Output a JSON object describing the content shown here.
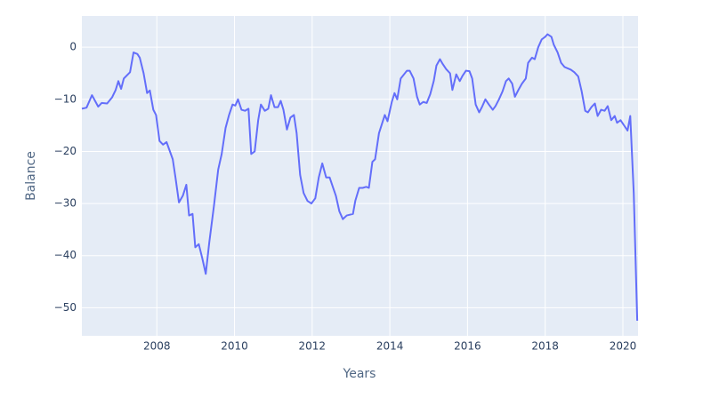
{
  "chart_data": {
    "type": "line",
    "x_label": "Years",
    "y_label": "Balance",
    "xlim": [
      2006.07,
      2020.39
    ],
    "ylim": [
      -55.4,
      6
    ],
    "xticks": [
      2008,
      2010,
      2012,
      2014,
      2016,
      2018,
      2020
    ],
    "yticks": [
      0,
      {
        "value": -10,
        "label": "−10"
      },
      {
        "value": -20,
        "label": "−20"
      },
      {
        "value": -30,
        "label": "−30"
      },
      {
        "value": -40,
        "label": "−40"
      },
      {
        "value": -50,
        "label": "−50"
      }
    ],
    "grid": true,
    "series": [
      {
        "color": "#636efa",
        "x": [
          2006.07,
          2006.19,
          2006.33,
          2006.49,
          2006.58,
          2006.72,
          2006.85,
          2006.94,
          2007.01,
          2007.08,
          2007.15,
          2007.31,
          2007.4,
          2007.5,
          2007.56,
          2007.66,
          2007.75,
          2007.82,
          2007.91,
          2007.98,
          2008.07,
          2008.16,
          2008.25,
          2008.41,
          2008.48,
          2008.57,
          2008.67,
          2008.76,
          2008.83,
          2008.92,
          2008.99,
          2009.08,
          2009.17,
          2009.26,
          2009.35,
          2009.47,
          2009.58,
          2009.67,
          2009.77,
          2009.86,
          2009.95,
          2010.02,
          2010.09,
          2010.18,
          2010.27,
          2010.36,
          2010.43,
          2010.52,
          2010.61,
          2010.68,
          2010.78,
          2010.87,
          2010.94,
          2011.03,
          2011.12,
          2011.19,
          2011.26,
          2011.35,
          2011.44,
          2011.53,
          2011.6,
          2011.69,
          2011.78,
          2011.88,
          2011.98,
          2012.08,
          2012.17,
          2012.26,
          2012.36,
          2012.45,
          2012.54,
          2012.61,
          2012.7,
          2012.79,
          2012.89,
          2013.05,
          2013.11,
          2013.21,
          2013.3,
          2013.39,
          2013.46,
          2013.55,
          2013.62,
          2013.72,
          2013.87,
          2013.94,
          2014.05,
          2014.12,
          2014.19,
          2014.28,
          2014.44,
          2014.51,
          2014.61,
          2014.7,
          2014.77,
          2014.86,
          2014.95,
          2015.04,
          2015.13,
          2015.2,
          2015.29,
          2015.36,
          2015.45,
          2015.55,
          2015.61,
          2015.71,
          2015.8,
          2015.87,
          2015.96,
          2016.05,
          2016.12,
          2016.21,
          2016.3,
          2016.37,
          2016.46,
          2016.55,
          2016.65,
          2016.72,
          2016.81,
          2016.9,
          2016.99,
          2017.06,
          2017.15,
          2017.22,
          2017.31,
          2017.4,
          2017.5,
          2017.56,
          2017.66,
          2017.73,
          2017.82,
          2017.91,
          2018.0,
          2018.06,
          2018.16,
          2018.22,
          2018.32,
          2018.41,
          2018.5,
          2018.66,
          2018.75,
          2018.85,
          2018.94,
          2019.03,
          2019.1,
          2019.19,
          2019.28,
          2019.35,
          2019.44,
          2019.53,
          2019.61,
          2019.7,
          2019.79,
          2019.85,
          2019.94,
          2020.03,
          2020.12,
          2020.19,
          2020.28,
          2020.37
        ],
        "values": [
          -11.8,
          -11.6,
          -9.2,
          -11.4,
          -10.7,
          -10.8,
          -9.6,
          -8.2,
          -6.5,
          -8,
          -6,
          -4.8,
          -1,
          -1.3,
          -2,
          -5,
          -8.8,
          -8.3,
          -12,
          -13,
          -18,
          -18.7,
          -18.2,
          -21.5,
          -25,
          -29.8,
          -28.5,
          -26.4,
          -32.3,
          -32,
          -38.4,
          -37.8,
          -40.5,
          -43.5,
          -37.5,
          -30.5,
          -23.5,
          -20.5,
          -15.5,
          -13,
          -11,
          -11.2,
          -10,
          -12,
          -12.2,
          -11.8,
          -20.5,
          -20,
          -14,
          -11,
          -12.2,
          -11.8,
          -9.2,
          -11.5,
          -11.5,
          -10.3,
          -12,
          -15.8,
          -13.5,
          -13,
          -16.5,
          -24.5,
          -28,
          -29.5,
          -30,
          -29,
          -25,
          -22.3,
          -25,
          -25,
          -27,
          -28.5,
          -31.5,
          -33,
          -32.3,
          -32,
          -29.5,
          -27,
          -27,
          -26.8,
          -27,
          -22,
          -21.5,
          -16.5,
          -13,
          -14.2,
          -10.5,
          -8.8,
          -10,
          -6,
          -4.5,
          -4.5,
          -6,
          -9.5,
          -11,
          -10.5,
          -10.7,
          -9,
          -6.5,
          -3.5,
          -2.3,
          -3.2,
          -4.2,
          -5,
          -8.2,
          -5.2,
          -6.5,
          -5.5,
          -4.5,
          -4.6,
          -6,
          -11,
          -12.5,
          -11.5,
          -10,
          -11,
          -12,
          -11.3,
          -10,
          -8.5,
          -6.5,
          -6,
          -7,
          -9.5,
          -8.2,
          -7,
          -6,
          -3,
          -2,
          -2.3,
          0,
          1.5,
          2,
          2.5,
          2,
          0.5,
          -1,
          -3,
          -3.8,
          -4.3,
          -4.8,
          -5.6,
          -8.5,
          -12.2,
          -12.5,
          -11.5,
          -10.8,
          -13.2,
          -12,
          -12.2,
          -11.3,
          -14,
          -13.2,
          -14.5,
          -14,
          -15,
          -16,
          -13.2,
          -28,
          -52.5
        ]
      }
    ]
  }
}
